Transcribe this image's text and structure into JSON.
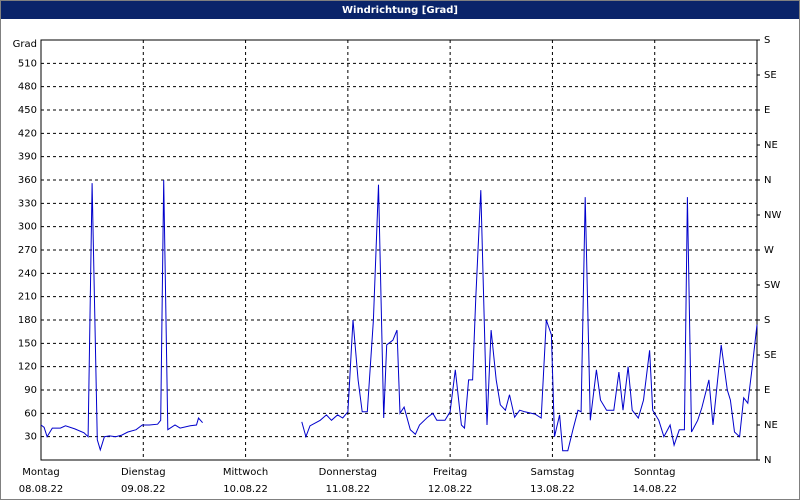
{
  "chart_data": {
    "type": "line",
    "title": "Windrichtung [Grad]",
    "y_label": "Grad",
    "xlim": [
      0,
      7
    ],
    "xticks": [
      {
        "value": 0,
        "label": "Montag",
        "date": "08.08.22"
      },
      {
        "value": 1,
        "label": "Dienstag",
        "date": "09.08.22"
      },
      {
        "value": 2,
        "label": "Mittwoch",
        "date": "10.08.22"
      },
      {
        "value": 3,
        "label": "Donnerstag",
        "date": "11.08.22"
      },
      {
        "value": 4,
        "label": "Freitag",
        "date": "12.08.22"
      },
      {
        "value": 5,
        "label": "Samstag",
        "date": "13.08.22"
      },
      {
        "value": 6,
        "label": "Sonntag",
        "date": "14.08.22"
      }
    ],
    "ylim": [
      0,
      540
    ],
    "yticks": [
      30,
      60,
      90,
      120,
      150,
      180,
      210,
      240,
      270,
      300,
      330,
      360,
      390,
      420,
      450,
      480,
      510
    ],
    "y2lim": [
      0,
      540
    ],
    "y2ticks": [
      {
        "value": 0,
        "label": "N"
      },
      {
        "value": 45,
        "label": "NE"
      },
      {
        "value": 90,
        "label": "E"
      },
      {
        "value": 135,
        "label": "SE"
      },
      {
        "value": 180,
        "label": "S"
      },
      {
        "value": 225,
        "label": "SW"
      },
      {
        "value": 270,
        "label": "W"
      },
      {
        "value": 315,
        "label": "NW"
      },
      {
        "value": 360,
        "label": "N"
      },
      {
        "value": 405,
        "label": "NE"
      },
      {
        "value": 450,
        "label": "E"
      },
      {
        "value": 495,
        "label": "SE"
      },
      {
        "value": 540,
        "label": "S"
      }
    ],
    "grid": true,
    "series": [
      {
        "color": "#0000cc",
        "x": [
          0,
          0.03,
          0.06,
          0.11,
          0.19,
          0.24,
          0.33,
          0.42,
          0.46,
          0.5,
          0.55,
          0.58,
          0.62,
          0.67,
          0.73,
          0.79,
          0.85,
          0.93,
          0.99,
          1.06,
          1.14,
          1.17,
          1.2,
          1.24,
          1.31,
          1.36,
          1.46,
          1.52,
          1.54,
          1.58,
          2.0,
          2.55,
          2.59,
          2.63,
          2.73,
          2.79,
          2.84,
          2.9,
          2.95,
          3.0,
          3.05,
          3.1,
          3.14,
          3.19,
          3.25,
          3.3,
          3.35,
          3.38,
          3.44,
          3.48,
          3.51,
          3.55,
          3.61,
          3.66,
          3.7,
          3.78,
          3.83,
          3.87,
          3.95,
          4.0,
          4.05,
          4.11,
          4.14,
          4.18,
          4.22,
          4.25,
          4.3,
          4.36,
          4.4,
          4.45,
          4.49,
          4.54,
          4.58,
          4.63,
          4.68,
          4.73,
          4.83,
          4.89,
          4.94,
          4.99,
          5.02,
          5.07,
          5.1,
          5.15,
          5.2,
          5.25,
          5.28,
          5.32,
          5.37,
          5.43,
          5.47,
          5.53,
          5.6,
          5.65,
          5.69,
          5.74,
          5.78,
          5.84,
          5.89,
          5.95,
          5.98,
          6.04,
          6.09,
          6.15,
          6.19,
          6.24,
          6.29,
          6.32,
          6.36,
          6.42,
          6.46,
          6.53,
          6.57,
          6.65,
          6.71,
          6.74,
          6.78,
          6.83,
          6.87,
          6.91,
          6.95,
          7.0
        ],
        "values": [
          45,
          42,
          30,
          41,
          41,
          44,
          40,
          35,
          30,
          356,
          26,
          13,
          30,
          31,
          30,
          32,
          36,
          39,
          45,
          45,
          46,
          51,
          360,
          39,
          45,
          41,
          44,
          45,
          54,
          48,
          null,
          49,
          30,
          44,
          51,
          58,
          51,
          58,
          54,
          62,
          180,
          103,
          62,
          62,
          180,
          354,
          54,
          148,
          154,
          167,
          60,
          68,
          39,
          33,
          45,
          55,
          60,
          51,
          51,
          62,
          116,
          45,
          41,
          103,
          103,
          206,
          347,
          45,
          167,
          103,
          71,
          64,
          84,
          55,
          64,
          62,
          59,
          54,
          180,
          161,
          30,
          58,
          12,
          12,
          39,
          64,
          62,
          338,
          51,
          116,
          77,
          64,
          64,
          113,
          64,
          120,
          64,
          54,
          77,
          141,
          64,
          51,
          30,
          45,
          19,
          39,
          39,
          338,
          36,
          51,
          67,
          103,
          45,
          148,
          90,
          77,
          36,
          30,
          80,
          73,
          116,
          174
        ]
      }
    ]
  }
}
